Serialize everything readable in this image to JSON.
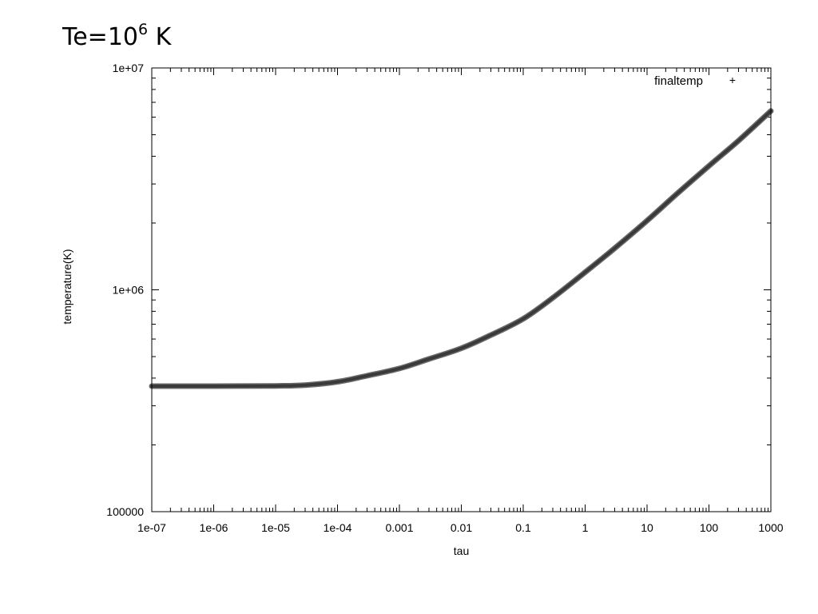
{
  "title": {
    "prefix": "Te=10",
    "exponent": "6",
    "suffix": " K"
  },
  "chart_data": {
    "type": "line",
    "xlabel": "tau",
    "ylabel": "temperature(K)",
    "xscale": "log",
    "yscale": "log",
    "xlim": [
      1e-07,
      1000
    ],
    "ylim": [
      100000,
      10000000
    ],
    "grid": false,
    "legend_position": "top-right",
    "x_tick_labels": [
      "1e-07",
      "1e-06",
      "1e-05",
      "1e-04",
      "0.001",
      "0.01",
      "0.1",
      "1",
      "10",
      "100",
      "1000"
    ],
    "y_tick_labels": [
      "100000",
      "1e+06",
      "1e+07"
    ],
    "series": [
      {
        "name": "finaltemp",
        "marker": "+",
        "color": "#3a3a3a",
        "x": [
          1e-07,
          1e-06,
          1e-05,
          3e-05,
          0.0001,
          0.0003,
          0.001,
          0.003,
          0.01,
          0.03,
          0.1,
          0.3,
          1,
          3,
          10,
          30,
          100,
          300,
          1000
        ],
        "y": [
          368000,
          368000,
          369000,
          372000,
          385000,
          410000,
          442000,
          488000,
          545000,
          625000,
          740000,
          920000,
          1200000,
          1540000,
          2050000,
          2700000,
          3620000,
          4700000,
          6400000
        ]
      }
    ]
  }
}
